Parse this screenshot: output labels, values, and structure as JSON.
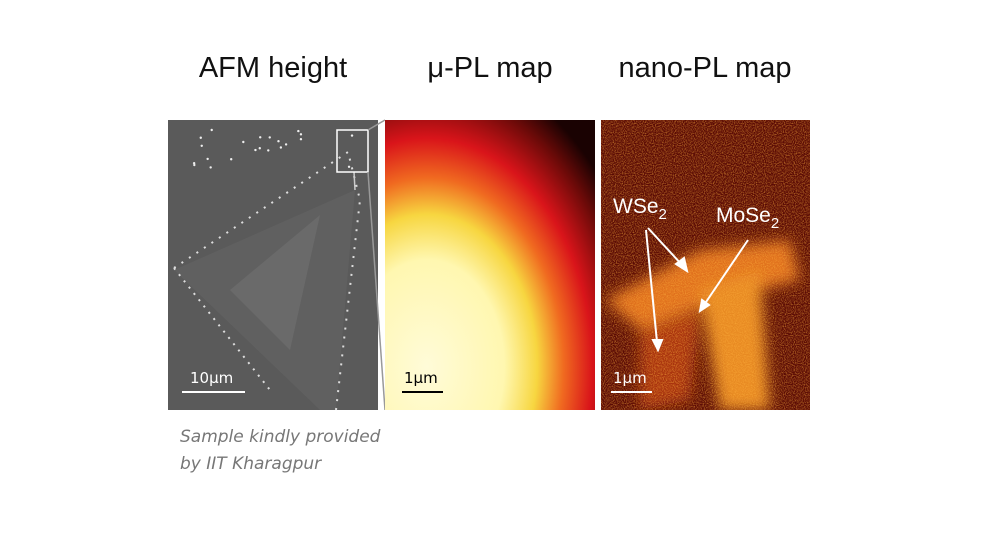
{
  "panels": [
    {
      "title": "AFM height",
      "scale_bar": "10μm"
    },
    {
      "title": "μ-PL map",
      "scale_bar": "1μm"
    },
    {
      "title": "nano-PL map",
      "scale_bar": "1μm",
      "annotations": [
        {
          "text": "WSe",
          "sub": "2"
        },
        {
          "text": "MoSe",
          "sub": "2"
        }
      ]
    }
  ],
  "caption": [
    "Sample kindly provided",
    "by IIT Kharagpur"
  ]
}
